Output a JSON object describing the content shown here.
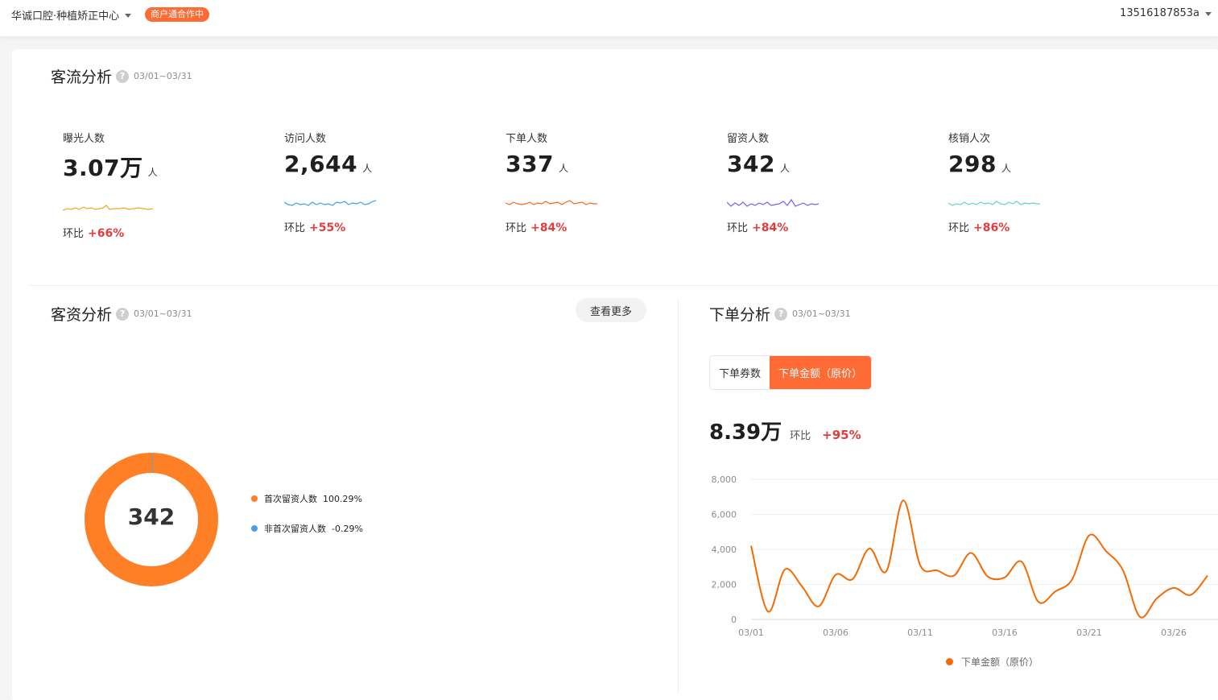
{
  "header": {
    "store_name": "华诚口腔·种植矫正中心",
    "status_badge": "商户通合作中",
    "account": "13516187853a"
  },
  "traffic": {
    "title": "客流分析",
    "range": "03/01~03/31",
    "compare_label": "环比",
    "kpis": [
      {
        "label": "曝光人数",
        "value": "3.07万",
        "unit": "人",
        "change": "+66%",
        "color": "#f5a623"
      },
      {
        "label": "访问人数",
        "value": "2,644",
        "unit": "人",
        "change": "+55%",
        "color": "#3aa0e8"
      },
      {
        "label": "下单人数",
        "value": "337",
        "unit": "人",
        "change": "+84%",
        "color": "#f56a1a"
      },
      {
        "label": "留资人数",
        "value": "342",
        "unit": "人",
        "change": "+84%",
        "color": "#7c5cf0"
      },
      {
        "label": "核销人次",
        "value": "298",
        "unit": "人",
        "change": "+86%",
        "color": "#5fd6c8"
      }
    ]
  },
  "leads": {
    "title": "客资分析",
    "range": "03/01~03/31",
    "more_button": "查看更多",
    "center_value": "342",
    "legend": [
      {
        "label": "首次留资人数",
        "percent": "100.29%",
        "color": "#ff7f27"
      },
      {
        "label": "非首次留资人数",
        "percent": "-0.29%",
        "color": "#4a9fe8"
      }
    ]
  },
  "orders": {
    "title": "下单分析",
    "range": "03/01~03/31",
    "tabs": [
      {
        "label": "下单券数",
        "active": false
      },
      {
        "label": "下单金额（原价）",
        "active": true
      }
    ],
    "total": "8.39万",
    "compare_label": "环比",
    "change": "+95%",
    "legend_label": "下单金额（原价）"
  },
  "chart_data": {
    "type": "line",
    "title": "",
    "x": [
      "03/01",
      "03/02",
      "03/03",
      "03/04",
      "03/05",
      "03/06",
      "03/07",
      "03/08",
      "03/09",
      "03/10",
      "03/11",
      "03/12",
      "03/13",
      "03/14",
      "03/15",
      "03/16",
      "03/17",
      "03/18",
      "03/19",
      "03/20",
      "03/21",
      "03/22",
      "03/23",
      "03/24",
      "03/25",
      "03/26",
      "03/27",
      "03/28"
    ],
    "x_tick_labels": [
      "03/01",
      "03/06",
      "03/11",
      "03/16",
      "03/21",
      "03/26"
    ],
    "series": [
      {
        "name": "下单金额（原价）",
        "color": "#f56a00",
        "values": [
          4200,
          450,
          2850,
          1900,
          750,
          2550,
          2300,
          4050,
          2750,
          6800,
          3100,
          2800,
          2500,
          3800,
          2450,
          2400,
          3300,
          1000,
          1600,
          2300,
          4800,
          3900,
          2800,
          150,
          1200,
          1800,
          1400,
          2500
        ]
      }
    ],
    "ylim": [
      0,
      8000
    ],
    "y_ticks": [
      "0",
      "2,000",
      "4,000",
      "6,000",
      "8,000"
    ],
    "grid": true,
    "legend": "bottom"
  }
}
